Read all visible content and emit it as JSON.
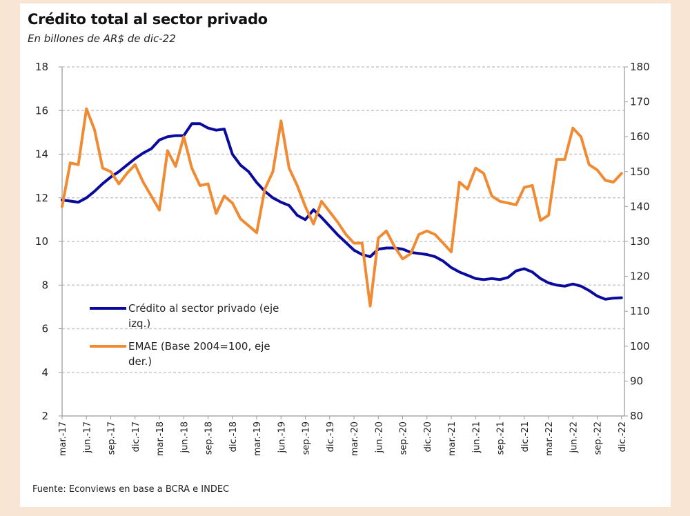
{
  "chart_data": {
    "type": "line",
    "title": "Crédito total al sector privado",
    "subtitle": "En billones de AR$ de dic-22",
    "source": "Fuente: Econviews en base a BCRA e INDEC",
    "x_start": "mar-17",
    "x_end": "dic-22",
    "x_frequency": "monthly",
    "x_tick_labels": [
      "mar.-17",
      "jun.-17",
      "sep.-17",
      "dic.-17",
      "mar.-18",
      "jun.-18",
      "sep.-18",
      "dic.-18",
      "mar.-19",
      "jun.-19",
      "sep.-19",
      "dic.-19",
      "mar.-20",
      "jun.-20",
      "sep.-20",
      "dic.-20",
      "mar.-21",
      "jun.-21",
      "sep.-21",
      "dic.-21",
      "mar.-22",
      "jun.-22",
      "sep.-22",
      "dic.-22"
    ],
    "y_left": {
      "range": [
        2,
        18
      ],
      "ticks": [
        2,
        4,
        6,
        8,
        10,
        12,
        14,
        16,
        18
      ]
    },
    "y_right": {
      "range": [
        80,
        180
      ],
      "ticks": [
        80,
        90,
        100,
        110,
        120,
        130,
        140,
        150,
        160,
        170,
        180
      ]
    },
    "grid": "horizontal dashed",
    "legend_position": "lower-left",
    "series": [
      {
        "name": "Crédito al sector privado (eje izq.)",
        "legend_lines": [
          "Crédito al sector privado (eje",
          "izq.)"
        ],
        "axis": "left",
        "color": "#0a0a9c",
        "values": [
          11.9,
          11.85,
          11.8,
          12.0,
          12.3,
          12.65,
          12.95,
          13.2,
          13.5,
          13.8,
          14.05,
          14.25,
          14.65,
          14.8,
          14.85,
          14.85,
          15.4,
          15.4,
          15.2,
          15.1,
          15.15,
          14.0,
          13.5,
          13.2,
          12.7,
          12.3,
          12.0,
          11.8,
          11.65,
          11.2,
          11.0,
          11.45,
          11.1,
          10.7,
          10.3,
          9.95,
          9.6,
          9.4,
          9.3,
          9.65,
          9.7,
          9.7,
          9.65,
          9.5,
          9.45,
          9.4,
          9.3,
          9.1,
          8.8,
          8.6,
          8.45,
          8.3,
          8.25,
          8.3,
          8.25,
          8.35,
          8.65,
          8.75,
          8.6,
          8.3,
          8.1,
          8.0,
          7.95,
          8.05,
          7.95,
          7.75,
          7.5,
          7.35,
          7.4,
          7.42
        ]
      },
      {
        "name": "EMAE (Base 2004=100, eje der.)",
        "legend_lines": [
          "EMAE (Base 2004=100, eje",
          "der.)"
        ],
        "axis": "right",
        "color": "#f08a33",
        "values": [
          140,
          152.5,
          152,
          168,
          162,
          151,
          150,
          146.5,
          149.5,
          152,
          147,
          143,
          139,
          156,
          151.5,
          160,
          151,
          146,
          146.5,
          138,
          143,
          141,
          136.5,
          134.5,
          132.5,
          145,
          150,
          164.5,
          151,
          146,
          140,
          135,
          141.5,
          138.5,
          135.5,
          132,
          129.5,
          129.5,
          111.5,
          131,
          133,
          128.5,
          125,
          126.5,
          132,
          133,
          132,
          129.5,
          127,
          147,
          145,
          151,
          149.5,
          143,
          141.5,
          141,
          140.5,
          145.5,
          146,
          136,
          137.5,
          153.5,
          153.5,
          162.5,
          160,
          152,
          150.5,
          147.5,
          147,
          149.5
        ]
      }
    ]
  }
}
